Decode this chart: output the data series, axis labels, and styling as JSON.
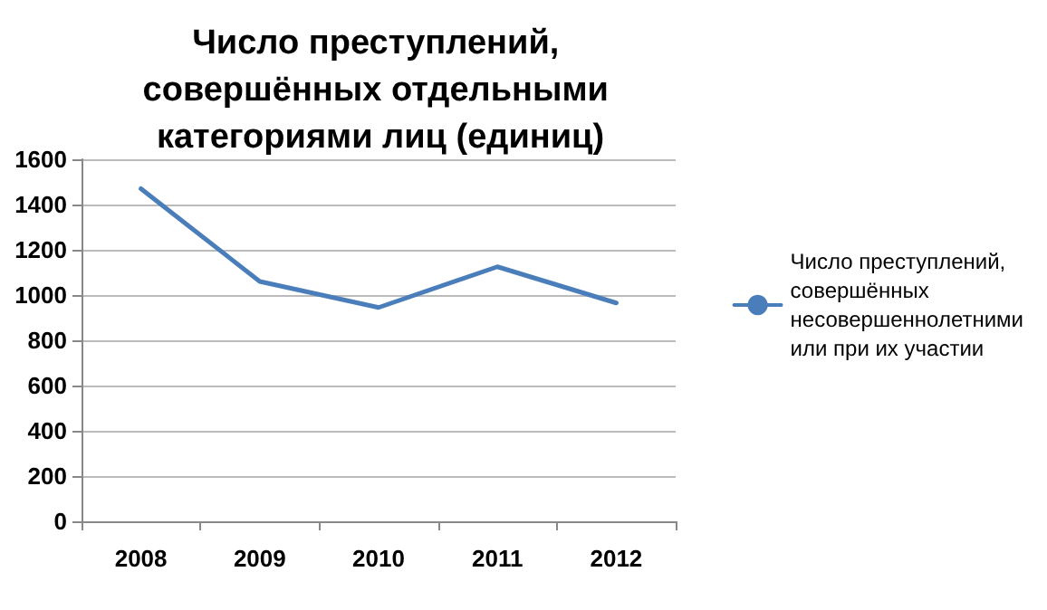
{
  "chart_data": {
    "type": "line",
    "title": "Число преступлений, совершённых отдельными категориями лиц (единиц)",
    "categories": [
      "2008",
      "2009",
      "2010",
      "2011",
      "2012"
    ],
    "series": [
      {
        "name": "Число преступлений, совершённых несовершеннолетними или при их участии",
        "color": "#4a7ebb",
        "values": [
          1470,
          1060,
          945,
          1125,
          965
        ]
      }
    ],
    "ylim": [
      0,
      1600
    ],
    "yticks": [
      0,
      200,
      400,
      600,
      800,
      1000,
      1200,
      1400,
      1600
    ],
    "grid": "y",
    "legend": "right",
    "marker": "none"
  }
}
